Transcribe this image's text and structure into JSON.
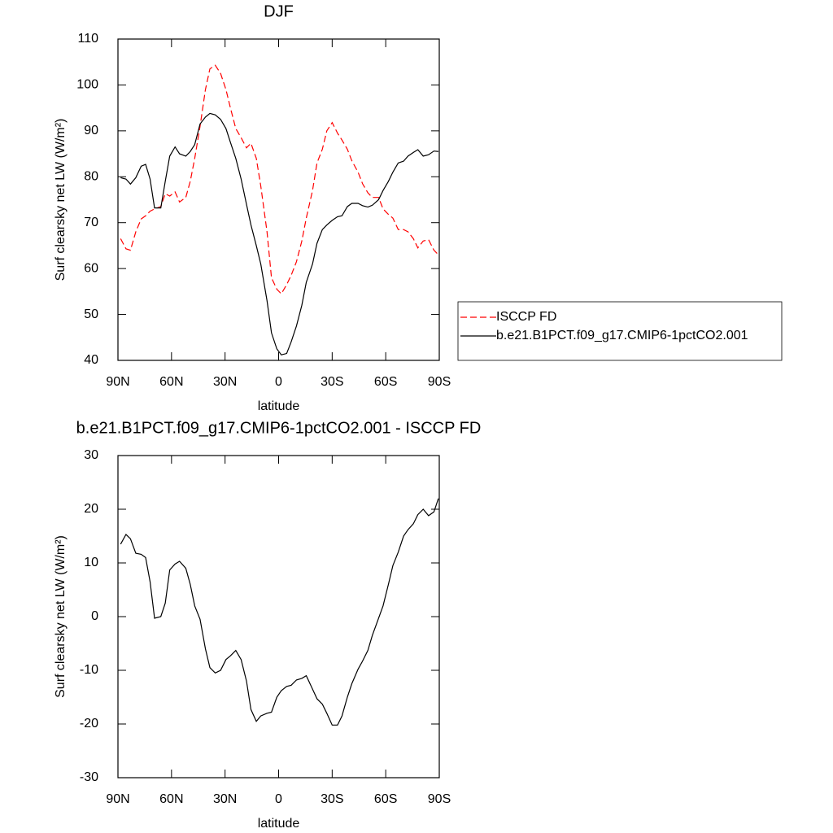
{
  "chart_data": [
    {
      "type": "line",
      "title": "DJF",
      "xlabel": "latitude",
      "ylabel": "Surf clearsky net LW (W/m²)",
      "x": [
        88.5,
        85.5,
        83,
        80,
        77,
        74.5,
        72,
        69.5,
        66,
        63.5,
        61,
        58,
        55.5,
        52,
        49.5,
        47,
        44,
        41,
        38.5,
        35.5,
        32.5,
        29.5,
        27,
        24,
        21,
        18,
        15.5,
        12.5,
        10,
        6.5,
        4,
        1,
        -1.5,
        -4.5,
        -7,
        -10,
        -13,
        -15.5,
        -19,
        -21.5,
        -24.5,
        -27,
        -30,
        -33,
        -35.5,
        -38.5,
        -41,
        -44.5,
        -47,
        -50,
        -52.5,
        -56,
        -58.5,
        -61.5,
        -64,
        -67,
        -70,
        -72.5,
        -75.5,
        -78,
        -81,
        -84,
        -87,
        -89.5
      ],
      "series": [
        {
          "name": "ISCCP FD",
          "color": "#ff0000",
          "dash": true,
          "values": [
            66.5,
            64.3,
            64,
            68,
            70.8,
            71.5,
            72.5,
            73,
            73.5,
            76.3,
            75.8,
            76.7,
            74.5,
            75.5,
            79,
            84,
            91,
            99,
            103.5,
            104.3,
            102.5,
            99,
            95,
            90.5,
            88.5,
            86.3,
            87.3,
            84,
            78,
            68,
            58,
            55.5,
            54.5,
            56.5,
            58.5,
            61.5,
            66,
            71,
            77,
            83,
            86,
            90,
            91.8,
            89.5,
            88,
            86,
            83.5,
            81,
            78.5,
            76.5,
            75.5,
            75.5,
            73,
            71.8,
            71,
            68.5,
            68.5,
            68,
            66.5,
            64.5,
            66,
            66.3,
            64,
            63
          ]
        },
        {
          "name": "b.e21.B1PCT.f09_g17.CMIP6-1pctCO2.001",
          "color": "#000000",
          "dash": false,
          "values": [
            79.8,
            79.5,
            78.4,
            79.8,
            82.3,
            82.7,
            79.5,
            73.2,
            73.2,
            79,
            84.5,
            86.5,
            85,
            84.5,
            85.5,
            87,
            91.5,
            93,
            93.8,
            93.5,
            92.5,
            90.5,
            87.5,
            84,
            79.5,
            74,
            69.5,
            65,
            61,
            53,
            46,
            42.5,
            41.2,
            41.5,
            44,
            47.5,
            52,
            57,
            61,
            65.5,
            68.5,
            69.5,
            70.5,
            71.3,
            71.5,
            73.5,
            74.2,
            74.2,
            73.7,
            73.4,
            73.8,
            75,
            77,
            79,
            81,
            83,
            83.4,
            84.5,
            85.3,
            85.9,
            84.5,
            84.8,
            85.6,
            85.5
          ]
        }
      ],
      "xlim": [
        90,
        -90
      ],
      "xticks": [
        {
          "value": 90,
          "label": "90N"
        },
        {
          "value": 60,
          "label": "60N"
        },
        {
          "value": 30,
          "label": "30N"
        },
        0,
        {
          "value": -30,
          "label": "30S"
        },
        {
          "value": -60,
          "label": "60S"
        },
        {
          "value": -90,
          "label": "90S"
        }
      ],
      "ylim": [
        40,
        110
      ],
      "yticks": [
        40,
        50,
        60,
        70,
        80,
        90,
        100,
        110
      ],
      "legend": "right"
    },
    {
      "type": "line",
      "title": "b.e21.B1PCT.f09_g17.CMIP6-1pctCO2.001 - ISCCP FD",
      "xlabel": "latitude",
      "ylabel": "Surf clearsky net LW (W/m²)",
      "x": [
        88.5,
        85.5,
        83,
        80,
        77,
        74.5,
        72,
        69.5,
        66,
        63.5,
        61,
        58,
        55.5,
        52,
        49.5,
        47,
        44,
        41,
        38.5,
        35.5,
        32.5,
        29.5,
        27,
        24,
        21,
        18,
        15.5,
        12.5,
        10,
        6.5,
        4,
        1,
        -1.5,
        -4.5,
        -7,
        -10,
        -13,
        -15.5,
        -19,
        -21.5,
        -24.5,
        -27,
        -30,
        -33,
        -35.5,
        -38.5,
        -41,
        -44.5,
        -47,
        -50,
        -52.5,
        -56,
        -58.5,
        -61.5,
        -64,
        -67,
        -70,
        -72.5,
        -75.5,
        -78,
        -81,
        -84,
        -87,
        -89.5
      ],
      "series": [
        {
          "color": "#000000",
          "dash": false,
          "values": [
            13.5,
            15.3,
            14.5,
            11.8,
            11.6,
            11,
            6.5,
            -0.3,
            0,
            2.5,
            8.7,
            9.8,
            10.3,
            9,
            6,
            2,
            -0.5,
            -6,
            -9.5,
            -10.5,
            -10,
            -8,
            -7.3,
            -6.3,
            -8,
            -12,
            -17.3,
            -19.5,
            -18.5,
            -18,
            -17.8,
            -15,
            -13.8,
            -13,
            -12.8,
            -11.8,
            -11.5,
            -11,
            -13.5,
            -15.3,
            -16.3,
            -18,
            -20.2,
            -20.2,
            -18.5,
            -15,
            -12.5,
            -9.8,
            -8.3,
            -6.3,
            -3.5,
            -0.3,
            2,
            6,
            9.5,
            12,
            15,
            16.2,
            17.3,
            19,
            20,
            18.8,
            19.5,
            22
          ]
        }
      ],
      "xlim": [
        90,
        -90
      ],
      "xticks": [
        {
          "value": 90,
          "label": "90N"
        },
        {
          "value": 60,
          "label": "60N"
        },
        {
          "value": 30,
          "label": "30N"
        },
        0,
        {
          "value": -30,
          "label": "30S"
        },
        {
          "value": -60,
          "label": "60S"
        },
        {
          "value": -90,
          "label": "90S"
        }
      ],
      "ylim": [
        -30,
        30
      ],
      "yticks": [
        -30,
        -20,
        -10,
        0,
        10,
        20,
        30
      ]
    }
  ]
}
